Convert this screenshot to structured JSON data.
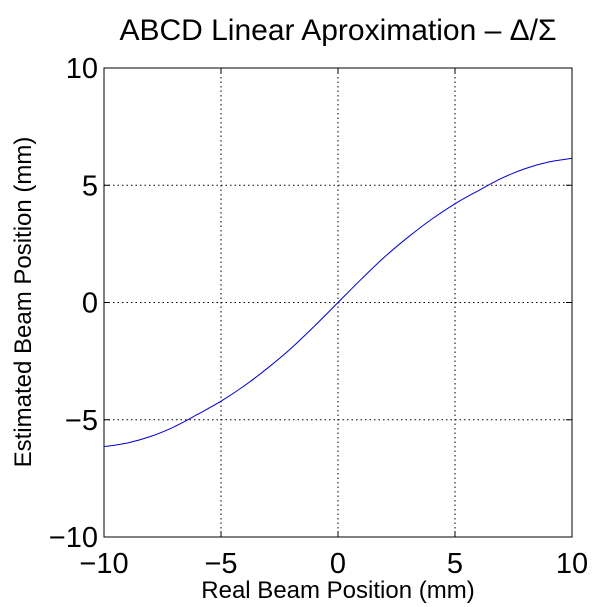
{
  "chart_data": {
    "type": "line",
    "title": "ABCD Linear Aproximation – Δ/Σ",
    "xlabel": "Real Beam Position (mm)",
    "ylabel": "Estimated Beam Position (mm)",
    "xlim": [
      -10,
      10
    ],
    "ylim": [
      -10,
      10
    ],
    "xticks": [
      -10,
      -5,
      0,
      5,
      10
    ],
    "yticks": [
      -10,
      -5,
      0,
      5,
      10
    ],
    "xtick_labels": [
      "−10",
      "−5",
      "0",
      "5",
      "10"
    ],
    "ytick_labels": [
      "−10",
      "−5",
      "0",
      "5",
      "10"
    ],
    "grid": true,
    "series_color": "#0000cc",
    "series": [
      {
        "x": [
          -10,
          -9,
          -8,
          -7,
          -6,
          -5,
          -4,
          -3,
          -2,
          -1,
          0,
          1,
          2,
          3,
          4,
          5,
          6,
          7,
          8,
          9,
          10
        ],
        "y": [
          -6.15,
          -5.99,
          -5.71,
          -5.3,
          -4.77,
          -4.21,
          -3.55,
          -2.79,
          -1.95,
          -1.0,
          0,
          1.0,
          1.95,
          2.79,
          3.55,
          4.21,
          4.77,
          5.3,
          5.71,
          5.99,
          6.15
        ]
      }
    ]
  }
}
